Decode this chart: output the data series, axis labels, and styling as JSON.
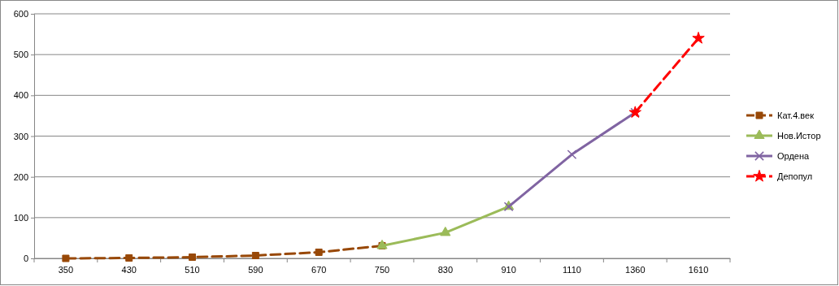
{
  "chart_data": {
    "type": "line",
    "categories": [
      "350",
      "430",
      "510",
      "590",
      "670",
      "750",
      "830",
      "910",
      "1110",
      "1360",
      "1610"
    ],
    "ylim": [
      0,
      600
    ],
    "yticks": [
      0,
      100,
      200,
      300,
      400,
      500,
      600
    ],
    "grid": "y",
    "legend": "right",
    "series": [
      {
        "name": "Кат.4.век",
        "color": "#984807",
        "marker": "square",
        "line_style": "dashed",
        "values": [
          0,
          1,
          3,
          7,
          15,
          31,
          null,
          null,
          null,
          null,
          null
        ]
      },
      {
        "name": "Нов.Истор",
        "color": "#9bbb59",
        "marker": "triangle",
        "line_style": "solid",
        "values": [
          null,
          null,
          null,
          null,
          null,
          31,
          63,
          127,
          null,
          null,
          null
        ]
      },
      {
        "name": "Ордена",
        "color": "#8064a2",
        "marker": "cross",
        "line_style": "solid",
        "values": [
          null,
          null,
          null,
          null,
          null,
          null,
          null,
          127,
          255,
          358,
          null
        ]
      },
      {
        "name": "Депопул",
        "color": "#ff0000",
        "marker": "star",
        "line_style": "dashed",
        "values": [
          null,
          null,
          null,
          null,
          null,
          null,
          null,
          null,
          null,
          358,
          540
        ]
      }
    ]
  }
}
